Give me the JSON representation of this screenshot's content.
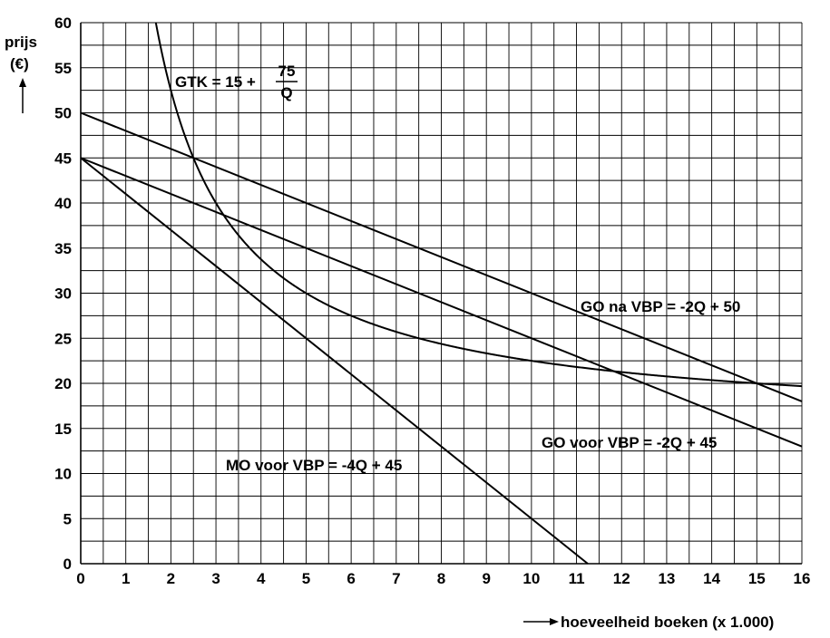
{
  "chart_data": {
    "type": "line",
    "xlabel": "hoeveelheid boeken (x 1.000)",
    "ylabel_line1": "prijs",
    "ylabel_line2": "(€)",
    "xlim": [
      0,
      16
    ],
    "ylim": [
      0,
      60
    ],
    "x_ticks": [
      0,
      1,
      2,
      3,
      4,
      5,
      6,
      7,
      8,
      9,
      10,
      11,
      12,
      13,
      14,
      15,
      16
    ],
    "y_ticks": [
      0,
      5,
      10,
      15,
      20,
      25,
      30,
      35,
      40,
      45,
      50,
      55,
      60
    ],
    "grid": true,
    "series": [
      {
        "name": "GTK = 15 + 75/Q",
        "formula": "15 + 75/Q",
        "x": [
          1.67,
          2,
          2.5,
          3,
          4,
          5,
          6,
          8,
          10,
          12,
          15,
          16
        ],
        "values": [
          60,
          52.5,
          45,
          40,
          33.75,
          30,
          27.5,
          24.38,
          22.5,
          21.25,
          20,
          19.69
        ]
      },
      {
        "name": "GO na VBP = -2Q + 50",
        "formula": "-2Q + 50",
        "x": [
          0,
          16
        ],
        "values": [
          50,
          18
        ]
      },
      {
        "name": "GO voor VBP = -2Q + 45",
        "formula": "-2Q + 45",
        "x": [
          0,
          16
        ],
        "values": [
          45,
          13
        ]
      },
      {
        "name": "MO voor VBP = -4Q + 45",
        "formula": "-4Q + 45",
        "x": [
          0,
          11.25
        ],
        "values": [
          45,
          0
        ]
      }
    ],
    "annotations": {
      "gtk_prefix": "GTK = 15 +",
      "gtk_numerator": "75",
      "gtk_denominator": "Q",
      "go_na": "GO na VBP = -2Q + 50",
      "go_voor": "GO voor VBP = -2Q + 45",
      "mo_voor": "MO voor VBP = -4Q + 45"
    }
  }
}
